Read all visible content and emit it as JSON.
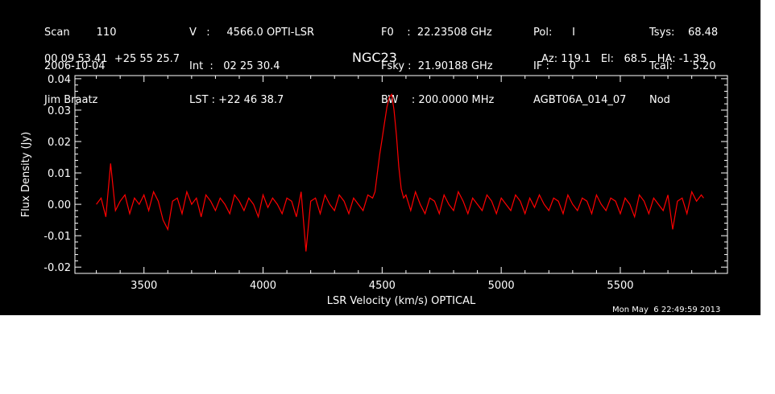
{
  "header": {
    "col1": [
      "Scan        110",
      "2006-10-04",
      "Jim Braatz"
    ],
    "col2": [
      "V   :     4566.0 OPTI-LSR",
      "Int  :   02 25 30.4",
      "LST : +22 46 38.7"
    ],
    "col3": [
      "F0    :  22.23508 GHz",
      "Fsky :  21.90188 GHz",
      "BW    : 200.0000 MHz"
    ],
    "col4": [
      "Pol:      I",
      "IF :      0",
      "AGBT06A_014_07"
    ],
    "col5": [
      "Tsys:    68.48",
      "Tcal:      5.20",
      "Nod"
    ]
  },
  "position": "00 09 53.41  +25 55 25.7",
  "object_name": "NGC23",
  "az_el_ha": "Az: 119.1   El:   68.5   HA: -1.39",
  "timestamp": "Mon May  6 22:49:59 2013",
  "chart_data": {
    "type": "line",
    "xlabel": "LSR Velocity (km/s) OPTICAL",
    "ylabel": "Flux Density (Jy)",
    "xlim": [
      3210,
      5950
    ],
    "ylim": [
      -0.022,
      0.041
    ],
    "xticks": [
      3500,
      4000,
      4500,
      5000,
      5500
    ],
    "xtick_labels": [
      "3500",
      "4000",
      "4500",
      "5000",
      "5500"
    ],
    "yticks": [
      -0.02,
      -0.01,
      0.0,
      0.01,
      0.02,
      0.03,
      0.04
    ],
    "ytick_labels": [
      "-0.02",
      "-0.01",
      "0.00",
      "0.01",
      "0.02",
      "0.03",
      "0.04"
    ],
    "series_color": "#ff0000",
    "series": [
      {
        "x": [
          3300,
          3320,
          3340,
          3360,
          3380,
          3400,
          3420,
          3440,
          3460,
          3480,
          3500,
          3520,
          3540,
          3560,
          3580,
          3600,
          3620,
          3640,
          3660,
          3680,
          3700,
          3720,
          3740,
          3760,
          3780,
          3800,
          3820,
          3840,
          3860,
          3880,
          3900,
          3920,
          3940,
          3960,
          3980,
          4000,
          4020,
          4040,
          4060,
          4080,
          4100,
          4120,
          4140,
          4160,
          4180,
          4200,
          4220,
          4240,
          4260,
          4280,
          4300,
          4320,
          4340,
          4360,
          4380,
          4400,
          4420,
          4440,
          4460,
          4470,
          4480,
          4490,
          4500,
          4510,
          4520,
          4530,
          4540,
          4550,
          4560,
          4570,
          4580,
          4590,
          4600,
          4620,
          4640,
          4660,
          4680,
          4700,
          4720,
          4740,
          4760,
          4780,
          4800,
          4820,
          4840,
          4860,
          4880,
          4900,
          4920,
          4940,
          4960,
          4980,
          5000,
          5020,
          5040,
          5060,
          5080,
          5100,
          5120,
          5140,
          5160,
          5180,
          5200,
          5220,
          5240,
          5260,
          5280,
          5300,
          5320,
          5340,
          5360,
          5380,
          5400,
          5420,
          5440,
          5460,
          5480,
          5500,
          5520,
          5540,
          5560,
          5580,
          5600,
          5620,
          5640,
          5660,
          5680,
          5700,
          5720,
          5740,
          5760,
          5780,
          5800,
          5820,
          5840,
          5850
        ],
        "y": [
          0.0,
          0.002,
          -0.004,
          0.013,
          -0.002,
          0.001,
          0.003,
          -0.003,
          0.002,
          0.0,
          0.003,
          -0.002,
          0.004,
          0.001,
          -0.005,
          -0.008,
          0.001,
          0.002,
          -0.003,
          0.004,
          0.0,
          0.002,
          -0.004,
          0.003,
          0.001,
          -0.002,
          0.002,
          0.0,
          -0.003,
          0.003,
          0.001,
          -0.002,
          0.002,
          0.0,
          -0.004,
          0.003,
          -0.001,
          0.002,
          0.0,
          -0.003,
          0.002,
          0.001,
          -0.004,
          0.004,
          -0.015,
          0.001,
          0.002,
          -0.003,
          0.003,
          0.0,
          -0.002,
          0.003,
          0.001,
          -0.003,
          0.002,
          0.0,
          -0.002,
          0.003,
          0.002,
          0.004,
          0.01,
          0.016,
          0.021,
          0.026,
          0.031,
          0.034,
          0.035,
          0.03,
          0.022,
          0.012,
          0.005,
          0.002,
          0.003,
          -0.002,
          0.004,
          0.0,
          -0.003,
          0.002,
          0.001,
          -0.003,
          0.003,
          0.0,
          -0.002,
          0.004,
          0.001,
          -0.003,
          0.002,
          0.0,
          -0.002,
          0.003,
          0.001,
          -0.003,
          0.002,
          0.0,
          -0.002,
          0.003,
          0.001,
          -0.003,
          0.002,
          -0.001,
          0.003,
          0.0,
          -0.002,
          0.002,
          0.001,
          -0.003,
          0.003,
          0.0,
          -0.002,
          0.002,
          0.001,
          -0.003,
          0.003,
          0.0,
          -0.002,
          0.002,
          0.001,
          -0.003,
          0.002,
          0.0,
          -0.004,
          0.003,
          0.001,
          -0.003,
          0.002,
          0.0,
          -0.002,
          0.003,
          -0.008,
          0.001,
          0.002,
          -0.003,
          0.004,
          0.001,
          0.003,
          0.002
        ]
      }
    ]
  }
}
